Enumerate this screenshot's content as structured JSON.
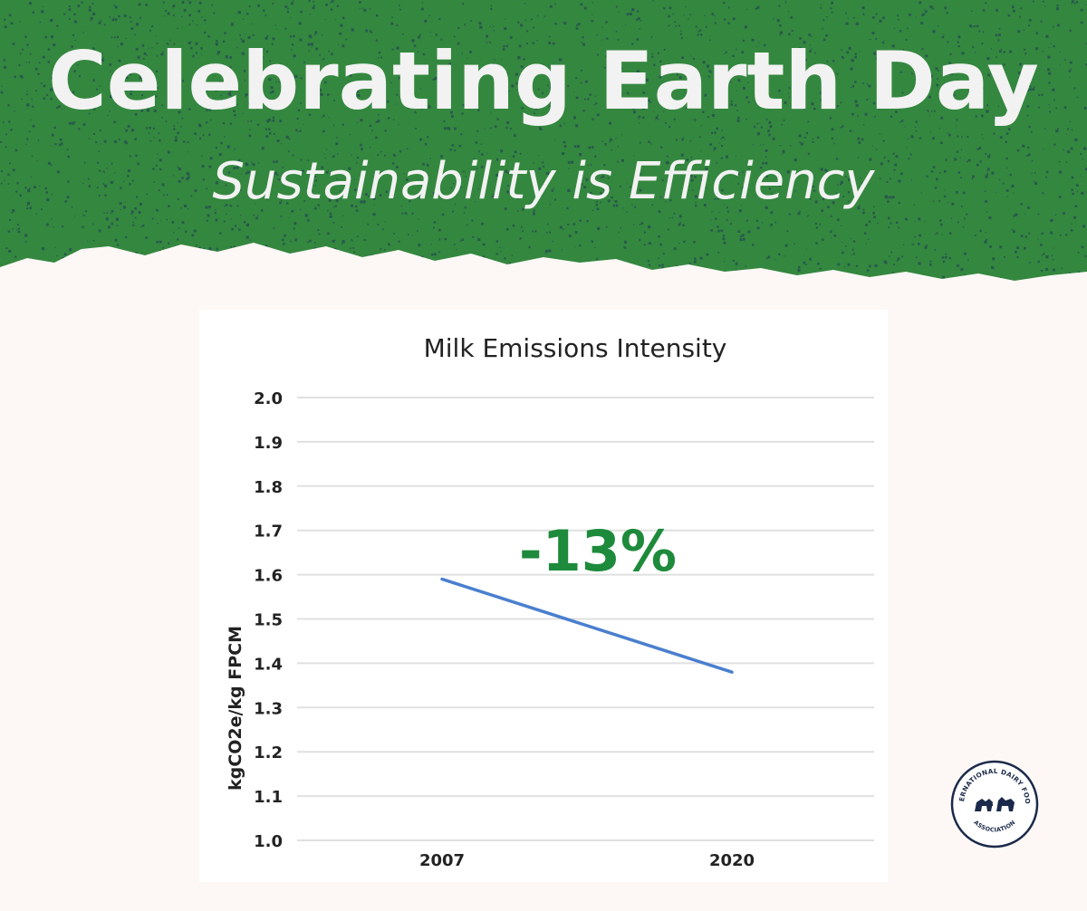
{
  "banner": {
    "title": "Celebrating Earth Day",
    "subtitle": "Sustainability is Efficiency",
    "background_color": "#34873f",
    "speckle_color": "#1d3557"
  },
  "chart_data": {
    "type": "line",
    "title": "Milk Emissions Intensity",
    "xlabel": "",
    "ylabel": "kgCO2e/kg FPCM",
    "categories": [
      "2007",
      "2020"
    ],
    "series": [
      {
        "values": [
          1.59,
          1.38
        ],
        "color": "#4a7fcf"
      }
    ],
    "ylim": [
      1.0,
      2.0
    ],
    "yticks": [
      "1.0",
      "1.1",
      "1.2",
      "1.3",
      "1.4",
      "1.5",
      "1.6",
      "1.7",
      "1.8",
      "1.9",
      "2.0"
    ],
    "grid": true,
    "annotation": {
      "text": "-13%",
      "color": "#1e8a3c"
    }
  },
  "logo": {
    "text_top": "INTERNATIONAL DAIRY FOODS",
    "text_bottom": "ASSOCIATION",
    "color": "#1b2a4a"
  }
}
